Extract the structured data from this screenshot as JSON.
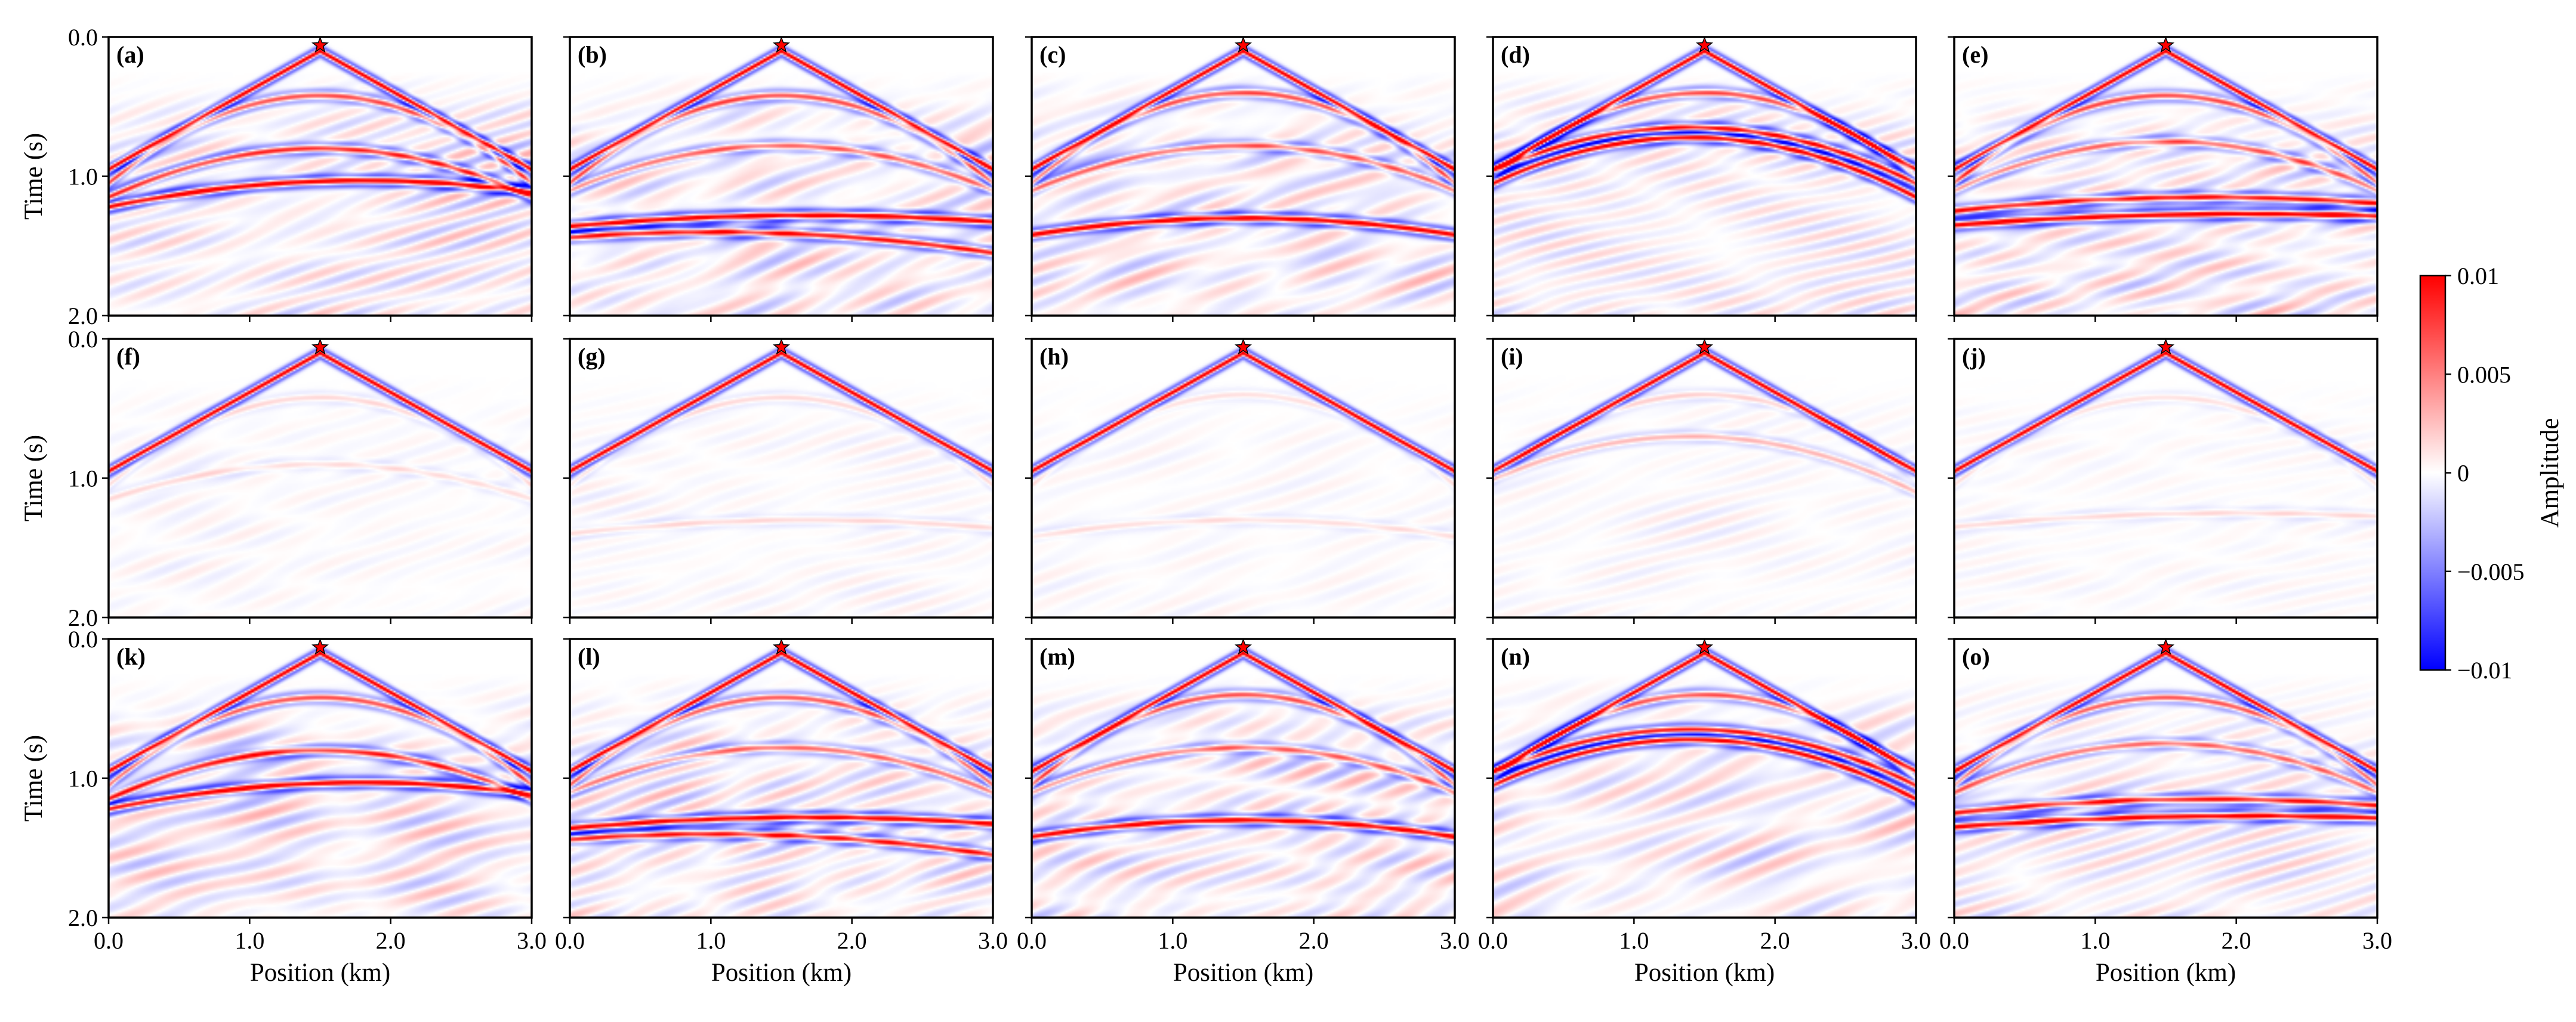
{
  "chart_data": {
    "type": "heatmap",
    "description_title": "",
    "grid": {
      "rows": 3,
      "cols": 5
    },
    "panel_labels": [
      "(a)",
      "(b)",
      "(c)",
      "(d)",
      "(e)",
      "(f)",
      "(g)",
      "(h)",
      "(i)",
      "(j)",
      "(k)",
      "(l)",
      "(m)",
      "(n)",
      "(o)"
    ],
    "xlabel": "Position (km)",
    "ylabel": "Time (s)",
    "xlim": [
      0.0,
      3.0
    ],
    "ylim": [
      0.0,
      2.0
    ],
    "x_ticks": [
      "0.0",
      "1.0",
      "2.0",
      "3.0"
    ],
    "y_ticks": [
      "0.0",
      "1.0",
      "2.0"
    ],
    "source_position_km": 1.5,
    "direct_wave": {
      "apex_time_s": 0.1,
      "edge_time_s": 0.95
    },
    "panels": [
      {
        "label": "(a)",
        "strength": 1.0,
        "events": [
          {
            "apex_x": 1.5,
            "t0": 0.42,
            "t_edge": 1.05,
            "amp": 0.6
          },
          {
            "apex_x": 1.5,
            "t0": 0.8,
            "t_edge": 1.15,
            "amp": 0.7
          },
          {
            "apex_x": 1.8,
            "t0": 1.03,
            "t_edge": 1.22,
            "amp": 1.0
          }
        ]
      },
      {
        "label": "(b)",
        "strength": 1.0,
        "events": [
          {
            "apex_x": 1.5,
            "t0": 0.42,
            "t_edge": 1.05,
            "amp": 0.6
          },
          {
            "apex_x": 1.5,
            "t0": 0.78,
            "t_edge": 1.1,
            "amp": 0.5
          },
          {
            "apex_x": 1.7,
            "t0": 1.28,
            "t_edge": 1.36,
            "amp": 1.0
          },
          {
            "apex_x": 1.0,
            "t0": 1.4,
            "t_edge": 1.55,
            "amp": 0.8
          }
        ]
      },
      {
        "label": "(c)",
        "strength": 1.0,
        "events": [
          {
            "apex_x": 1.5,
            "t0": 0.4,
            "t_edge": 1.05,
            "amp": 0.6
          },
          {
            "apex_x": 1.5,
            "t0": 0.78,
            "t_edge": 1.1,
            "amp": 0.5
          },
          {
            "apex_x": 1.5,
            "t0": 1.3,
            "t_edge": 1.42,
            "amp": 1.0
          }
        ]
      },
      {
        "label": "(d)",
        "strength": 1.0,
        "events": [
          {
            "apex_x": 1.5,
            "t0": 0.4,
            "t_edge": 1.0,
            "amp": 0.6
          },
          {
            "apex_x": 1.4,
            "t0": 0.65,
            "t_edge": 1.05,
            "amp": 0.9
          },
          {
            "apex_x": 1.4,
            "t0": 0.72,
            "t_edge": 1.15,
            "amp": 1.0
          }
        ]
      },
      {
        "label": "(e)",
        "strength": 1.0,
        "events": [
          {
            "apex_x": 1.5,
            "t0": 0.42,
            "t_edge": 1.05,
            "amp": 0.6
          },
          {
            "apex_x": 1.5,
            "t0": 0.75,
            "t_edge": 1.1,
            "amp": 0.5
          },
          {
            "apex_x": 1.8,
            "t0": 1.15,
            "t_edge": 1.25,
            "amp": 0.8
          },
          {
            "apex_x": 2.1,
            "t0": 1.27,
            "t_edge": 1.35,
            "amp": 1.0
          }
        ]
      },
      {
        "label": "(f)",
        "strength": 0.25,
        "events": [
          {
            "apex_x": 1.5,
            "t0": 0.42,
            "t_edge": 1.05,
            "amp": 0.5
          },
          {
            "apex_x": 1.5,
            "t0": 0.9,
            "t_edge": 1.15,
            "amp": 0.4
          }
        ]
      },
      {
        "label": "(g)",
        "strength": 0.25,
        "events": [
          {
            "apex_x": 1.5,
            "t0": 0.42,
            "t_edge": 1.05,
            "amp": 0.5
          },
          {
            "apex_x": 1.7,
            "t0": 1.3,
            "t_edge": 1.4,
            "amp": 0.5
          }
        ]
      },
      {
        "label": "(h)",
        "strength": 0.2,
        "events": [
          {
            "apex_x": 1.5,
            "t0": 0.4,
            "t_edge": 1.05,
            "amp": 0.5
          },
          {
            "apex_x": 1.5,
            "t0": 1.3,
            "t_edge": 1.42,
            "amp": 0.5
          }
        ]
      },
      {
        "label": "(i)",
        "strength": 0.3,
        "events": [
          {
            "apex_x": 1.5,
            "t0": 0.4,
            "t_edge": 1.0,
            "amp": 0.5
          },
          {
            "apex_x": 1.4,
            "t0": 0.7,
            "t_edge": 1.1,
            "amp": 0.8
          }
        ]
      },
      {
        "label": "(j)",
        "strength": 0.2,
        "events": [
          {
            "apex_x": 1.5,
            "t0": 0.42,
            "t_edge": 1.05,
            "amp": 0.5
          },
          {
            "apex_x": 2.0,
            "t0": 1.25,
            "t_edge": 1.35,
            "amp": 0.6
          }
        ]
      },
      {
        "label": "(k)",
        "strength": 1.0,
        "events": [
          {
            "apex_x": 1.5,
            "t0": 0.42,
            "t_edge": 1.05,
            "amp": 0.6
          },
          {
            "apex_x": 1.5,
            "t0": 0.8,
            "t_edge": 1.15,
            "amp": 0.7
          },
          {
            "apex_x": 1.8,
            "t0": 1.03,
            "t_edge": 1.22,
            "amp": 1.0
          }
        ]
      },
      {
        "label": "(l)",
        "strength": 0.95,
        "events": [
          {
            "apex_x": 1.5,
            "t0": 0.42,
            "t_edge": 1.05,
            "amp": 0.6
          },
          {
            "apex_x": 1.5,
            "t0": 0.78,
            "t_edge": 1.1,
            "amp": 0.5
          },
          {
            "apex_x": 1.7,
            "t0": 1.28,
            "t_edge": 1.36,
            "amp": 1.0
          },
          {
            "apex_x": 1.0,
            "t0": 1.4,
            "t_edge": 1.55,
            "amp": 0.8
          }
        ]
      },
      {
        "label": "(m)",
        "strength": 0.95,
        "events": [
          {
            "apex_x": 1.5,
            "t0": 0.4,
            "t_edge": 1.05,
            "amp": 0.6
          },
          {
            "apex_x": 1.5,
            "t0": 0.78,
            "t_edge": 1.1,
            "amp": 0.5
          },
          {
            "apex_x": 1.5,
            "t0": 1.3,
            "t_edge": 1.42,
            "amp": 1.0
          }
        ]
      },
      {
        "label": "(n)",
        "strength": 0.95,
        "events": [
          {
            "apex_x": 1.5,
            "t0": 0.4,
            "t_edge": 1.0,
            "amp": 0.6
          },
          {
            "apex_x": 1.4,
            "t0": 0.65,
            "t_edge": 1.05,
            "amp": 0.9
          },
          {
            "apex_x": 1.4,
            "t0": 0.72,
            "t_edge": 1.15,
            "amp": 1.0
          }
        ]
      },
      {
        "label": "(o)",
        "strength": 0.95,
        "events": [
          {
            "apex_x": 1.5,
            "t0": 0.42,
            "t_edge": 1.05,
            "amp": 0.6
          },
          {
            "apex_x": 1.5,
            "t0": 0.75,
            "t_edge": 1.1,
            "amp": 0.5
          },
          {
            "apex_x": 1.8,
            "t0": 1.15,
            "t_edge": 1.25,
            "amp": 0.8
          },
          {
            "apex_x": 2.1,
            "t0": 1.27,
            "t_edge": 1.35,
            "amp": 1.0
          }
        ]
      }
    ],
    "colorbar": {
      "label": "Amplitude",
      "range": [
        -0.01,
        0.01
      ],
      "ticks": [
        "0.01",
        "0.005",
        "0",
        "−0.005",
        "−0.01"
      ],
      "colors": {
        "min": "#0000ff",
        "mid": "#ffffff",
        "max": "#ff0000"
      }
    }
  }
}
